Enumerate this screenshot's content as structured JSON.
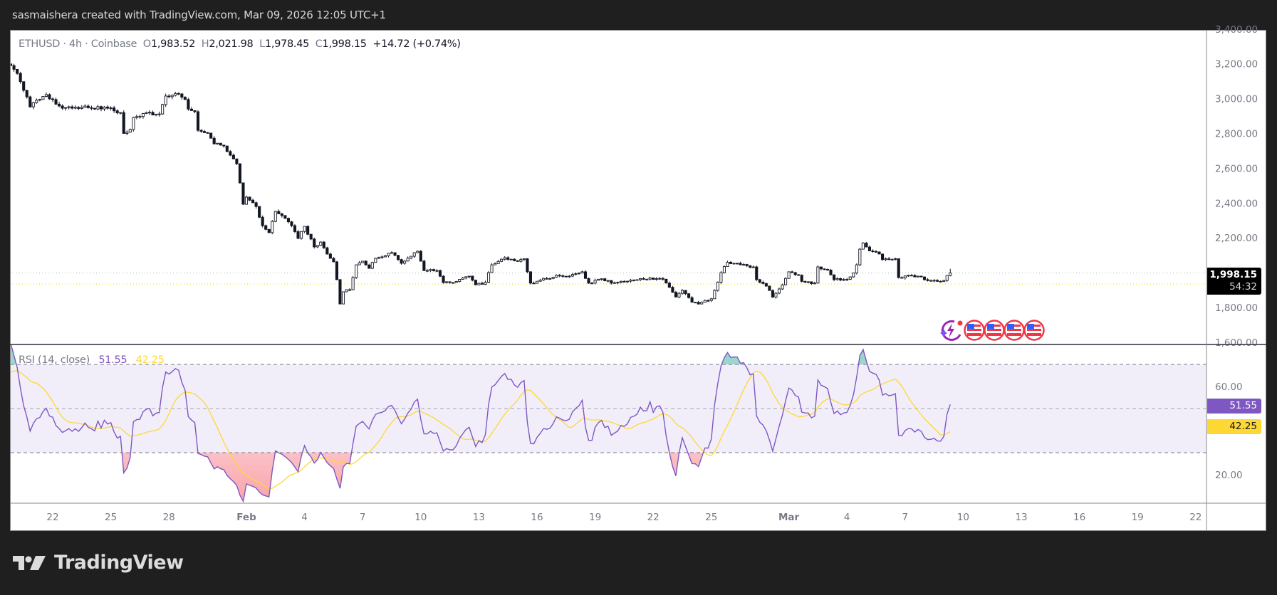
{
  "header": {
    "attribution": "sasmaishera created with TradingView.com, Mar 09, 2026 12:05 UTC+1"
  },
  "legend": {
    "symbol": "ETHUSD · 4h · Coinbase",
    "o_label": "O",
    "o": "1,983.52",
    "h_label": "H",
    "h": "2,021.98",
    "l_label": "L",
    "l": "1,978.45",
    "c_label": "C",
    "c": "1,998.15",
    "change": "+14.72 (+0.74%)"
  },
  "price_axis": {
    "ticks": [
      {
        "value": 3400,
        "label": "3,400.00"
      },
      {
        "value": 3200,
        "label": "3,200.00"
      },
      {
        "value": 3000,
        "label": "3,000.00"
      },
      {
        "value": 2800,
        "label": "2,800.00"
      },
      {
        "value": 2600,
        "label": "2,600.00"
      },
      {
        "value": 2400,
        "label": "2,400.00"
      },
      {
        "value": 2200,
        "label": "2,200.00"
      },
      {
        "value": 1800,
        "label": "1,800.00"
      },
      {
        "value": 1600,
        "label": "1,600.00"
      }
    ],
    "last_price": "1,998.15",
    "countdown": "54:32"
  },
  "rsi": {
    "title": "RSI (14, close)",
    "value": "51.55",
    "ma_value": "42.25",
    "axis_ticks": [
      {
        "value": 60,
        "label": "60.00"
      },
      {
        "value": 20,
        "label": "20.00"
      }
    ],
    "upper_band": 70,
    "middle_band": 50,
    "lower_band": 30,
    "line_color": "#7e57c2",
    "ma_color": "#fdd835"
  },
  "time_axis": {
    "ticks": [
      {
        "date": "2026-01-22",
        "label": "22"
      },
      {
        "date": "2026-01-25",
        "label": "25"
      },
      {
        "date": "2026-01-28",
        "label": "28"
      },
      {
        "date": "2026-02-01",
        "label": "Feb",
        "bold": true
      },
      {
        "date": "2026-02-04",
        "label": "4"
      },
      {
        "date": "2026-02-07",
        "label": "7"
      },
      {
        "date": "2026-02-10",
        "label": "10"
      },
      {
        "date": "2026-02-13",
        "label": "13"
      },
      {
        "date": "2026-02-16",
        "label": "16"
      },
      {
        "date": "2026-02-19",
        "label": "19"
      },
      {
        "date": "2026-02-22",
        "label": "22"
      },
      {
        "date": "2026-02-25",
        "label": "25"
      },
      {
        "date": "2026-03-01",
        "label": "Mar",
        "bold": true
      },
      {
        "date": "2026-03-04",
        "label": "4"
      },
      {
        "date": "2026-03-07",
        "label": "7"
      },
      {
        "date": "2026-03-10",
        "label": "10"
      },
      {
        "date": "2026-03-13",
        "label": "13"
      },
      {
        "date": "2026-03-16",
        "label": "16"
      },
      {
        "date": "2026-03-19",
        "label": "19"
      },
      {
        "date": "2026-03-22",
        "label": "22"
      }
    ]
  },
  "events": [
    "lightning-icon",
    "us-flag-icon",
    "us-flag-icon",
    "us-flag-icon",
    "us-flag-icon"
  ],
  "logo": {
    "text": "TradingView"
  },
  "colors": {
    "up": "#ffffff",
    "down": "#131722",
    "wick": "#131722",
    "last_price_line": "#b2b5be",
    "yellow_line": "#f7e600",
    "rsi_band": "#7e57c2"
  },
  "chart_data": {
    "type": "candlestick",
    "symbol": "ETHUSD",
    "interval": "4h",
    "ylim": [
      1600,
      3400
    ],
    "path": [
      [
        "2026-01-19T20",
        3190
      ],
      [
        "2026-01-20T04",
        3145
      ],
      [
        "2026-01-20T12",
        3048
      ],
      [
        "2026-01-20T20",
        2953
      ],
      [
        "2026-01-21T16",
        3023
      ],
      [
        "2026-01-22T00",
        2995
      ],
      [
        "2026-01-22T12",
        2945
      ],
      [
        "2026-01-23T04",
        2950
      ],
      [
        "2026-01-23T20",
        2948
      ],
      [
        "2026-01-24T20",
        2945
      ],
      [
        "2026-01-25T12",
        2920
      ],
      [
        "2026-01-25T16",
        2800
      ],
      [
        "2026-01-26T00",
        2823
      ],
      [
        "2026-01-26T04",
        2892
      ],
      [
        "2026-01-26T20",
        2920
      ],
      [
        "2026-01-27T12",
        2912
      ],
      [
        "2026-01-27T16",
        2966
      ],
      [
        "2026-01-27T20",
        3015
      ],
      [
        "2026-01-28T12",
        3027
      ],
      [
        "2026-01-28T20",
        2995
      ],
      [
        "2026-01-29T00",
        2940
      ],
      [
        "2026-01-29T08",
        2925
      ],
      [
        "2026-01-29T12",
        2818
      ],
      [
        "2026-01-30T00",
        2802
      ],
      [
        "2026-01-30T08",
        2740
      ],
      [
        "2026-01-30T20",
        2728
      ],
      [
        "2026-01-31T04",
        2675
      ],
      [
        "2026-01-31T12",
        2626
      ],
      [
        "2026-01-31T16",
        2516
      ],
      [
        "2026-01-31T20",
        2393
      ],
      [
        "2026-02-01T00",
        2434
      ],
      [
        "2026-02-01T12",
        2380
      ],
      [
        "2026-02-01T20",
        2270
      ],
      [
        "2026-02-02T04",
        2230
      ],
      [
        "2026-02-02T12",
        2352
      ],
      [
        "2026-02-02T20",
        2328
      ],
      [
        "2026-02-03T08",
        2270
      ],
      [
        "2026-02-03T16",
        2197
      ],
      [
        "2026-02-04T00",
        2266
      ],
      [
        "2026-02-04T12",
        2148
      ],
      [
        "2026-02-04T20",
        2176
      ],
      [
        "2026-02-05T04",
        2107
      ],
      [
        "2026-02-05T12",
        2062
      ],
      [
        "2026-02-05T16",
        1960
      ],
      [
        "2026-02-05T20",
        1820
      ],
      [
        "2026-02-06T00",
        1890
      ],
      [
        "2026-02-06T08",
        1902
      ],
      [
        "2026-02-06T12",
        1972
      ],
      [
        "2026-02-06T16",
        2045
      ],
      [
        "2026-02-07T00",
        2066
      ],
      [
        "2026-02-07T08",
        2025
      ],
      [
        "2026-02-07T16",
        2082
      ],
      [
        "2026-02-08T12",
        2115
      ],
      [
        "2026-02-09T00",
        2054
      ],
      [
        "2026-02-09T20",
        2123
      ],
      [
        "2026-02-10T04",
        2012
      ],
      [
        "2026-02-10T20",
        2012
      ],
      [
        "2026-02-11T04",
        1943
      ],
      [
        "2026-02-11T16",
        1943
      ],
      [
        "2026-02-12T12",
        1980
      ],
      [
        "2026-02-12T20",
        1930
      ],
      [
        "2026-02-13T08",
        1945
      ],
      [
        "2026-02-13T12",
        2000
      ],
      [
        "2026-02-13T16",
        2045
      ],
      [
        "2026-02-14T08",
        2086
      ],
      [
        "2026-02-15T00",
        2065
      ],
      [
        "2026-02-15T08",
        2080
      ],
      [
        "2026-02-15T12",
        2005
      ],
      [
        "2026-02-15T16",
        1940
      ],
      [
        "2026-02-16T12",
        1965
      ],
      [
        "2026-02-17T00",
        1985
      ],
      [
        "2026-02-17T16",
        1980
      ],
      [
        "2026-02-18T08",
        2005
      ],
      [
        "2026-02-18T16",
        1940
      ],
      [
        "2026-02-19T08",
        1965
      ],
      [
        "2026-02-19T20",
        1940
      ],
      [
        "2026-02-20T08",
        1950
      ],
      [
        "2026-02-21T00",
        1958
      ],
      [
        "2026-02-21T20",
        1970
      ],
      [
        "2026-02-22T12",
        1962
      ],
      [
        "2026-02-22T16",
        1940
      ],
      [
        "2026-02-23T04",
        1860
      ],
      [
        "2026-02-23T12",
        1898
      ],
      [
        "2026-02-24T00",
        1830
      ],
      [
        "2026-02-24T08",
        1820
      ],
      [
        "2026-02-25T00",
        1850
      ],
      [
        "2026-02-25T04",
        1898
      ],
      [
        "2026-02-25T12",
        2000
      ],
      [
        "2026-02-25T20",
        2060
      ],
      [
        "2026-02-26T12",
        2045
      ],
      [
        "2026-02-27T04",
        2033
      ],
      [
        "2026-02-27T08",
        1960
      ],
      [
        "2026-02-27T20",
        1923
      ],
      [
        "2026-02-28T04",
        1860
      ],
      [
        "2026-02-28T16",
        1930
      ],
      [
        "2026-03-01T00",
        2005
      ],
      [
        "2026-03-01T12",
        1985
      ],
      [
        "2026-03-01T16",
        1950
      ],
      [
        "2026-03-02T08",
        1940
      ],
      [
        "2026-03-02T12",
        2033
      ],
      [
        "2026-03-03T00",
        2015
      ],
      [
        "2026-03-03T08",
        1960
      ],
      [
        "2026-03-04T00",
        1962
      ],
      [
        "2026-03-04T08",
        1998
      ],
      [
        "2026-03-04T12",
        2045
      ],
      [
        "2026-03-04T16",
        2135
      ],
      [
        "2026-03-04T20",
        2170
      ],
      [
        "2026-03-05T04",
        2125
      ],
      [
        "2026-03-05T16",
        2107
      ],
      [
        "2026-03-05T20",
        2075
      ],
      [
        "2026-03-06T12",
        2080
      ],
      [
        "2026-03-06T16",
        1972
      ],
      [
        "2026-03-07T04",
        1985
      ],
      [
        "2026-03-07T16",
        1980
      ],
      [
        "2026-03-08T00",
        1960
      ],
      [
        "2026-03-08T16",
        1950
      ],
      [
        "2026-03-09T00",
        1955
      ],
      [
        "2026-03-09T04",
        1983.52
      ]
    ],
    "last_candle": {
      "date": "2026-03-09T08",
      "open": 1983.52,
      "high": 2021.98,
      "low": 1978.45,
      "close": 1998.15
    },
    "last_price": 1998.15,
    "yellow_line_price": 1935
  }
}
